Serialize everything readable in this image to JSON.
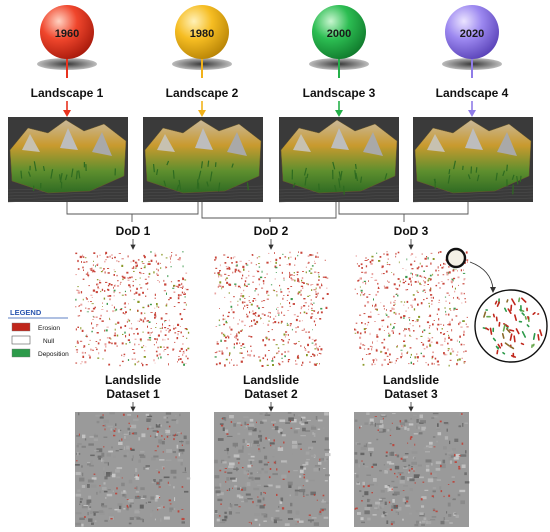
{
  "timeline": [
    {
      "year": "1960",
      "color": "#e8321e",
      "landscape": "Landscape 1"
    },
    {
      "year": "1980",
      "color": "#f2b21a",
      "landscape": "Landscape 2"
    },
    {
      "year": "2000",
      "color": "#25b04a",
      "landscape": "Landscape 3"
    },
    {
      "year": "2020",
      "color": "#8f7ce8",
      "landscape": "Landscape 4"
    }
  ],
  "dods": [
    {
      "label": "DoD 1",
      "title": "Landslide",
      "subtitle": "Dataset 1"
    },
    {
      "label": "DoD 2",
      "title": "Landslide",
      "subtitle": "Dataset 2"
    },
    {
      "label": "DoD 3",
      "title": "Landslide",
      "subtitle": "Dataset 3"
    }
  ],
  "legend": {
    "title": "LEGEND",
    "items": [
      {
        "label": "Erosion",
        "color": "#c0261b"
      },
      {
        "label": "Null",
        "color": "#ffffff"
      },
      {
        "label": "Deposition",
        "color": "#2c9a4a"
      }
    ]
  }
}
